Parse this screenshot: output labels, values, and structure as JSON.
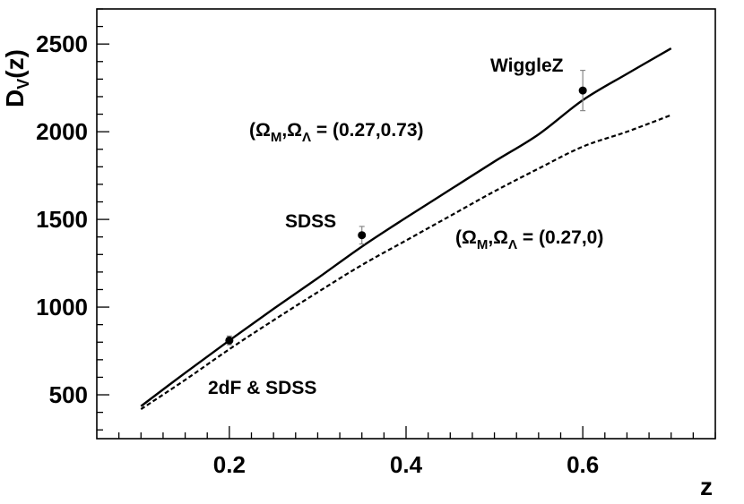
{
  "chart_data": {
    "type": "line",
    "xlabel": "z",
    "ylabel": "D_V(z)",
    "xlim": [
      0.05,
      0.75
    ],
    "ylim": [
      250,
      2700
    ],
    "x_ticks": [
      0.2,
      0.4,
      0.6
    ],
    "y_ticks": [
      500,
      1000,
      1500,
      2000,
      2500
    ],
    "grid": false,
    "series": [
      {
        "label": "(Ω_M,Ω_Λ = (0.27,0.73)",
        "style": "solid",
        "x": [
          0.1,
          0.15,
          0.2,
          0.25,
          0.3,
          0.35,
          0.4,
          0.45,
          0.5,
          0.55,
          0.6,
          0.65,
          0.7
        ],
        "y": [
          435,
          625,
          810,
          990,
          1165,
          1345,
          1510,
          1670,
          1830,
          1985,
          2180,
          2330,
          2475
        ]
      },
      {
        "label": "(Ω_M,Ω_Λ = (0.27,0)",
        "style": "dashed",
        "x": [
          0.1,
          0.15,
          0.2,
          0.25,
          0.3,
          0.35,
          0.4,
          0.45,
          0.5,
          0.55,
          0.6,
          0.65,
          0.7
        ],
        "y": [
          418,
          585,
          760,
          925,
          1085,
          1240,
          1380,
          1520,
          1660,
          1790,
          1915,
          2000,
          2095
        ]
      }
    ],
    "points": [
      {
        "label": "2dF & SDSS",
        "x": 0.2,
        "y": 810,
        "err": 25
      },
      {
        "label": "SDSS",
        "x": 0.35,
        "y": 1410,
        "err": 50
      },
      {
        "label": "WiggleZ",
        "x": 0.6,
        "y": 2235,
        "err": 115
      }
    ],
    "annotations": [
      {
        "id": "wigglez",
        "text": "WiggleZ"
      },
      {
        "id": "sdss",
        "text": "SDSS"
      },
      {
        "id": "twodf",
        "text": "2dF & SDSS"
      }
    ]
  }
}
